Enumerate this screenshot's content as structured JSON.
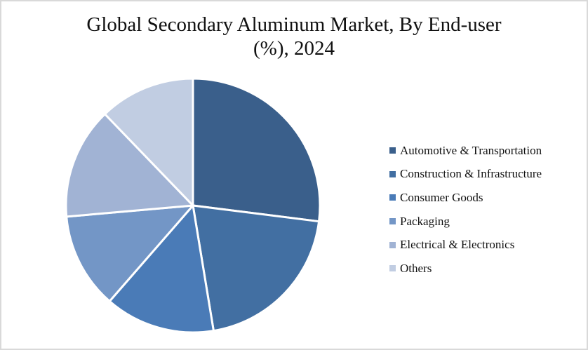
{
  "chart_data": {
    "type": "pie",
    "title": "Global Secondary Aluminum Market, By End-user (%), 2024",
    "title_lines": [
      "Global Secondary Aluminum Market, By End-user",
      "(%), 2024"
    ],
    "categories": [
      "Automotive & Transportation",
      "Construction & Infrastructure",
      "Consumer Goods",
      "Packaging",
      "Electrical & Electronics",
      "Others"
    ],
    "values": [
      27.0,
      20.4,
      14.0,
      12.2,
      14.2,
      12.2
    ],
    "colors": [
      "#3A5F8B",
      "#426FA2",
      "#4A7BB7",
      "#7396C6",
      "#A1B3D4",
      "#C1CDE2"
    ],
    "start_angle_deg": 0,
    "direction": "clockwise",
    "legend_position": "right",
    "data_labels": false
  },
  "legend": {
    "items": [
      {
        "label": "Automotive & Transportation",
        "color": "#3A5F8B"
      },
      {
        "label": "Construction & Infrastructure",
        "color": "#426FA2"
      },
      {
        "label": "Consumer Goods",
        "color": "#4A7BB7"
      },
      {
        "label": "Packaging",
        "color": "#7396C6"
      },
      {
        "label": "Electrical & Electronics",
        "color": "#A1B3D4"
      },
      {
        "label": "Others",
        "color": "#C1CDE2"
      }
    ]
  }
}
